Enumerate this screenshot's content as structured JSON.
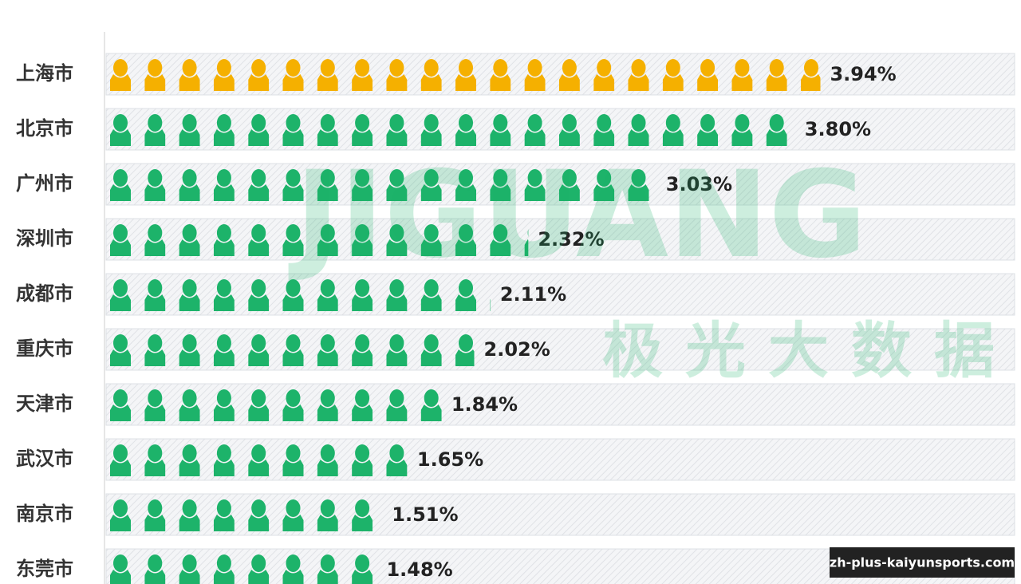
{
  "chart_data": {
    "type": "pictogram",
    "categories": [
      "上海市",
      "北京市",
      "广州市",
      "深圳市",
      "成都市",
      "重庆市",
      "天津市",
      "武汉市",
      "南京市",
      "东莞市"
    ],
    "values": [
      3.94,
      3.8,
      3.03,
      2.32,
      2.11,
      2.02,
      1.84,
      1.65,
      1.51,
      1.48
    ],
    "value_labels": [
      "3.94%",
      "3.80%",
      "3.03%",
      "2.32%",
      "2.11%",
      "2.02%",
      "1.84%",
      "1.65%",
      "1.51%",
      "1.48%"
    ],
    "colors": [
      "#f5b000",
      "#1db36a",
      "#1db36a",
      "#1db36a",
      "#1db36a",
      "#1db36a",
      "#1db36a",
      "#1db36a",
      "#1db36a",
      "#1db36a"
    ]
  },
  "watermark": {
    "brand": "JIGUANG",
    "name": "极光大数据"
  },
  "source": "zh-plus-kaiyunsports.com"
}
